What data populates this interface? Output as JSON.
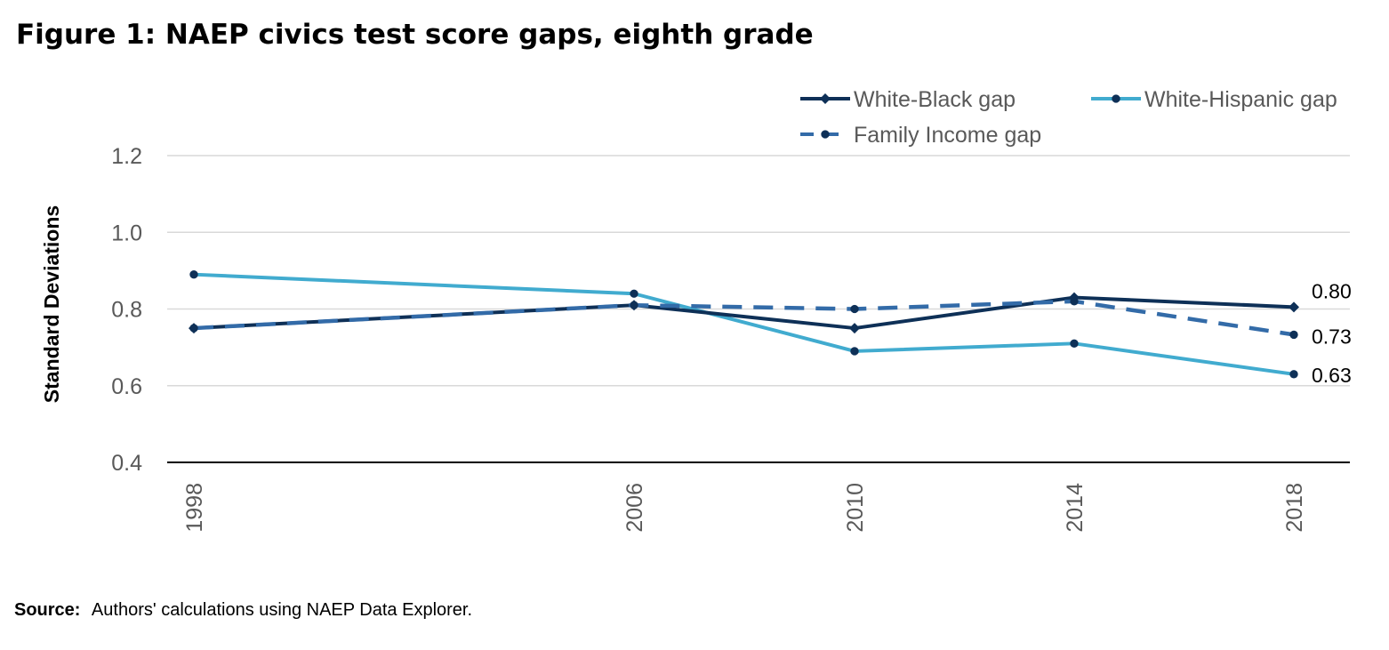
{
  "chart_data": {
    "type": "line",
    "title": "Figure 1: NAEP civics test score gaps, eighth grade",
    "ylabel": "Standard Deviations",
    "xlabel": "",
    "x": [
      1998,
      2006,
      2010,
      2014,
      2018
    ],
    "x_tick_labels": [
      "1998",
      "2006",
      "2010",
      "2014",
      "2018"
    ],
    "ylim": [
      0.4,
      1.2
    ],
    "y_ticks": [
      0.4,
      0.6,
      0.8,
      1.0,
      1.2
    ],
    "y_tick_labels": [
      "0.4",
      "0.6",
      "0.8",
      "1.0",
      "1.2"
    ],
    "grid": true,
    "legend_position": "top-right",
    "series": [
      {
        "name": "White-Black gap",
        "values": [
          0.75,
          0.81,
          0.75,
          0.83,
          0.805
        ],
        "color": "#0e3057",
        "marker": "diamond",
        "dash": false,
        "end_label": "0.80"
      },
      {
        "name": "White-Hispanic gap",
        "values": [
          0.89,
          0.84,
          0.69,
          0.71,
          0.63
        ],
        "color": "#41abcf",
        "marker": "circle",
        "dash": false,
        "end_label": "0.63"
      },
      {
        "name": "Family Income gap",
        "values": [
          0.75,
          0.81,
          0.8,
          0.82,
          0.733
        ],
        "color": "#336ba8",
        "marker": "circle",
        "dash": true,
        "end_label": "0.73"
      }
    ],
    "source_label": "Source:",
    "source_text": "Authors' calculations using NAEP Data Explorer."
  }
}
